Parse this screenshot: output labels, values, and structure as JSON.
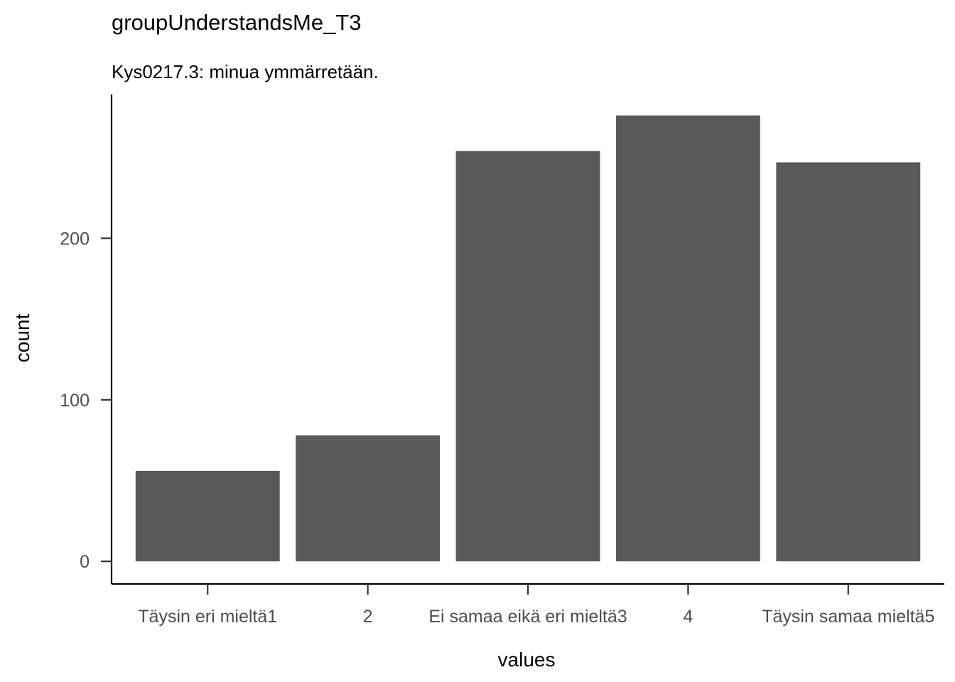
{
  "chart_data": {
    "type": "bar",
    "title": "groupUnderstandsMe_T3",
    "subtitle": "Kys0217.3: minua ymmärretään.",
    "xlabel": "values",
    "ylabel": "count",
    "categories": [
      "Täysin eri mieltä1",
      "2",
      "Ei samaa eikä eri mieltä3",
      "4",
      "Täysin samaa mieltä5"
    ],
    "values": [
      56,
      78,
      254,
      276,
      247
    ],
    "yticks": [
      0,
      100,
      200
    ],
    "ylim": [
      -14,
      289
    ],
    "grid": false,
    "legend": "none",
    "bar_color": "#595959"
  }
}
